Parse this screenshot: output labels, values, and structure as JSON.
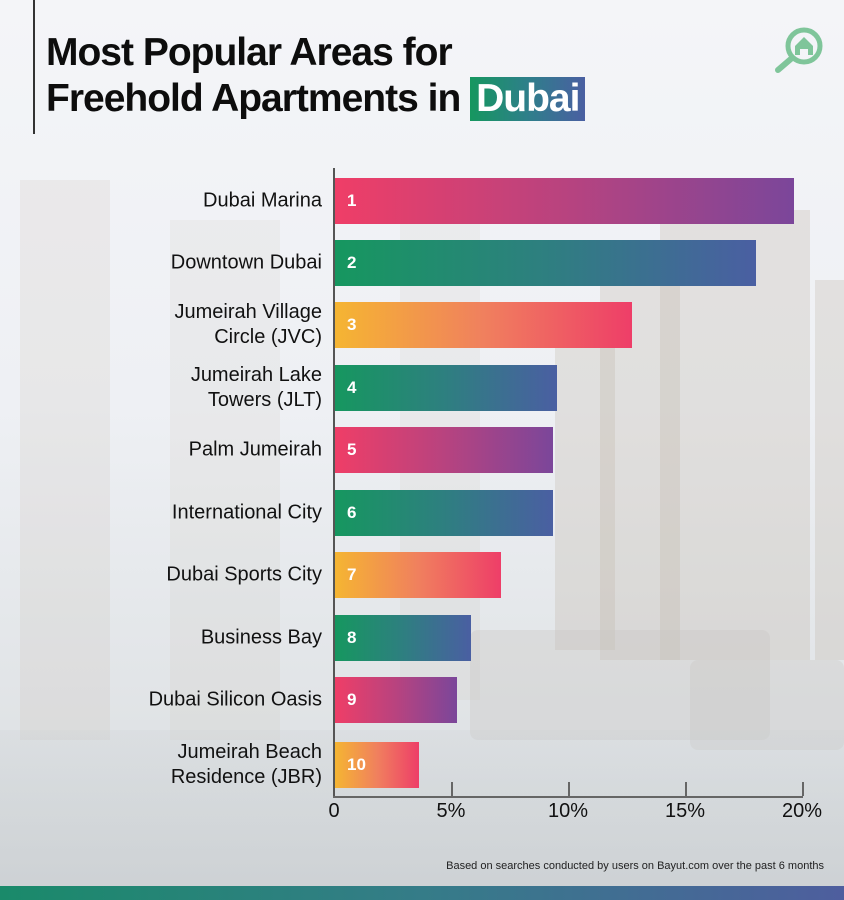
{
  "header": {
    "title_line1": "Most Popular Areas for",
    "title_line2_prefix": "Freehold Apartments in",
    "title_highlight": "Dubai",
    "logo_icon": "house-search-icon"
  },
  "colors": {
    "pink_gradient": [
      "#ef3e67",
      "#7b469a"
    ],
    "green_gradient": [
      "#16975f",
      "#4a5fa2"
    ],
    "orange_gradient": [
      "#f5b532",
      "#ee3e68"
    ],
    "logo": "#7fc59a"
  },
  "chart_data": {
    "type": "bar",
    "orientation": "horizontal",
    "title": "Most Popular Areas for Freehold Apartments in Dubai",
    "xlabel": "",
    "ylabel": "",
    "xlim": [
      0,
      20
    ],
    "x_ticks": [
      "0",
      "5%",
      "10%",
      "15%",
      "20%"
    ],
    "grid": false,
    "legend": null,
    "categories": [
      "Dubai Marina",
      "Downtown Dubai",
      "Jumeirah Village Circle (JVC)",
      "Jumeirah Lake Towers (JLT)",
      "Palm Jumeirah",
      "International City",
      "Dubai Sports City",
      "Business Bay",
      "Dubai Silicon Oasis",
      "Jumeirah Beach Residence (JBR)"
    ],
    "ranks": [
      1,
      2,
      3,
      4,
      5,
      6,
      7,
      8,
      9,
      10
    ],
    "values": [
      19.6,
      18.0,
      12.7,
      9.5,
      9.3,
      9.3,
      7.1,
      5.8,
      5.2,
      3.6
    ],
    "unit": "% share of searches"
  },
  "rows": [
    {
      "label": "Dubai Marina",
      "rank": "1",
      "value": 19.6,
      "style": "pink"
    },
    {
      "label": "Downtown Dubai",
      "rank": "2",
      "value": 18.0,
      "style": "green"
    },
    {
      "label": "Jumeirah Village\nCircle (JVC)",
      "rank": "3",
      "value": 12.7,
      "style": "orange"
    },
    {
      "label": "Jumeirah Lake\nTowers (JLT)",
      "rank": "4",
      "value": 9.5,
      "style": "green"
    },
    {
      "label": "Palm Jumeirah",
      "rank": "5",
      "value": 9.3,
      "style": "pink"
    },
    {
      "label": "International City",
      "rank": "6",
      "value": 9.3,
      "style": "green"
    },
    {
      "label": "Dubai Sports City",
      "rank": "7",
      "value": 7.1,
      "style": "orange"
    },
    {
      "label": "Business Bay",
      "rank": "8",
      "value": 5.8,
      "style": "green"
    },
    {
      "label": "Dubai Silicon Oasis",
      "rank": "9",
      "value": 5.2,
      "style": "pink"
    },
    {
      "label": "Jumeirah Beach\nResidence (JBR)",
      "rank": "10",
      "value": 3.6,
      "style": "orange"
    }
  ],
  "axis": {
    "ticks": [
      {
        "label": "0",
        "value": 0
      },
      {
        "label": "5%",
        "value": 5
      },
      {
        "label": "10%",
        "value": 10
      },
      {
        "label": "15%",
        "value": 15
      },
      {
        "label": "20%",
        "value": 20
      }
    ]
  },
  "footnote": "Based on searches conducted by users on Bayut.com over the past 6 months"
}
